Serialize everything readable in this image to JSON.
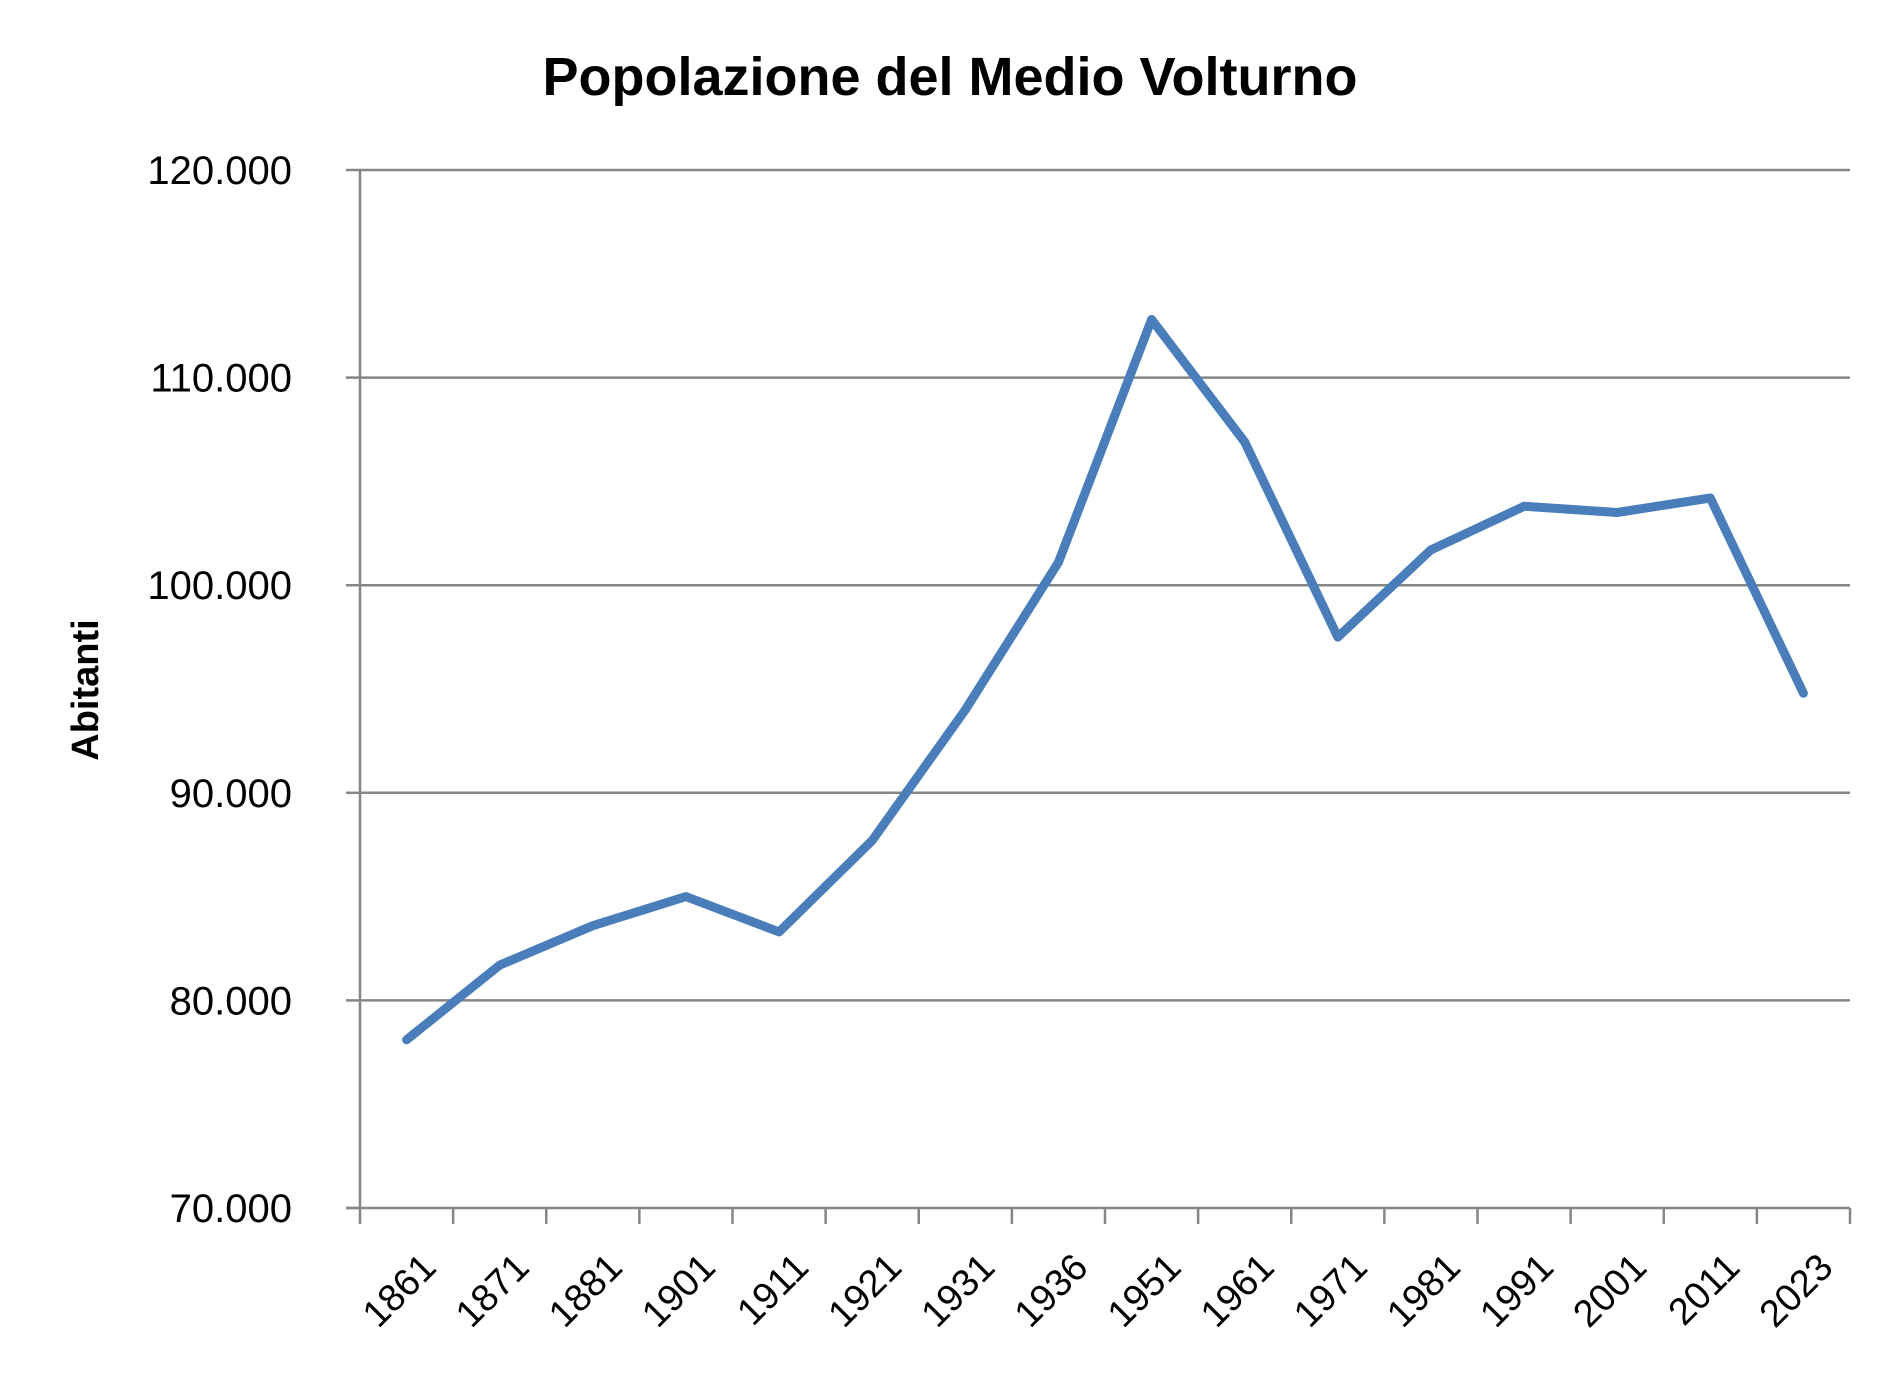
{
  "chart_data": {
    "type": "line",
    "title": "Popolazione del Medio Volturno",
    "xlabel": "",
    "ylabel": "Abitanti",
    "categories": [
      "1861",
      "1871",
      "1881",
      "1901",
      "1911",
      "1921",
      "1931",
      "1936",
      "1951",
      "1961",
      "1971",
      "1981",
      "1991",
      "2001",
      "2011",
      "2023"
    ],
    "series": [
      {
        "name": "",
        "color": "#4a7ebb",
        "values": [
          78100,
          81700,
          83600,
          85000,
          83300,
          87700,
          94000,
          101100,
          112800,
          106900,
          97500,
          101700,
          103800,
          103500,
          104200,
          94800
        ]
      }
    ],
    "ylim": [
      70000,
      120000
    ],
    "yticks": [
      70000,
      80000,
      90000,
      100000,
      110000,
      120000
    ],
    "ytick_labels": [
      "70.000",
      "80.000",
      "90.000",
      "100.000",
      "110.000",
      "120.000"
    ],
    "grid": true,
    "legend": "none"
  }
}
